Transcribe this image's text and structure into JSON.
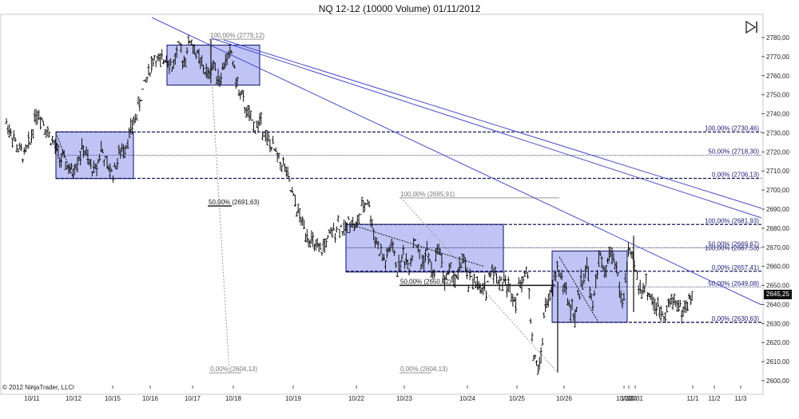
{
  "title": "NQ 12-12 (10000 Volume)  01/11/2012",
  "copyright": "© 2012 NinjaTrader, LLC",
  "last_price": "2645,25",
  "nav_icon": "play-to-end-icon",
  "colors": {
    "bars": "#111111",
    "box_fill": "#aab0f2",
    "box_border": "#0b0f6b",
    "trendline": "#4a4ec7",
    "fib_label": "#1a1a7a",
    "grid_label": "#222222",
    "retrace_line": "#999999"
  },
  "chart_data": {
    "type": "ohlc",
    "xlabel": "",
    "ylabel": "",
    "ylim": [
      2600,
      2785
    ],
    "y_ticks": [
      "2780,00",
      "2770,00",
      "2760,00",
      "2750,00",
      "2740,00",
      "2730,00",
      "2720,00",
      "2710,00",
      "2700,00",
      "2690,00",
      "2680,00",
      "2670,00",
      "2660,00",
      "2650,00",
      "2640,00",
      "2630,00",
      "2620,00",
      "2610,00",
      "2600,00"
    ],
    "x_ticks": [
      "10/11",
      "10/12",
      "10/15",
      "10/16",
      "10/17",
      "10/18",
      "10/19",
      "10/22",
      "10/23",
      "10/24",
      "10/25",
      "10/26",
      "10/29",
      "10/30",
      "10/31",
      "11/1",
      "11/2",
      "11/3"
    ],
    "close_path": [
      2735,
      2729,
      2721,
      2718,
      2725,
      2741,
      2738,
      2730,
      2724,
      2717,
      2714,
      2709,
      2716,
      2722,
      2713,
      2710,
      2722,
      2712,
      2709,
      2718,
      2723,
      2731,
      2740,
      2752,
      2762,
      2770,
      2766,
      2771,
      2764,
      2775,
      2768,
      2779,
      2772,
      2765,
      2760,
      2766,
      2758,
      2768,
      2772,
      2754,
      2746,
      2738,
      2733,
      2736,
      2726,
      2722,
      2716,
      2712,
      2700,
      2690,
      2682,
      2676,
      2670,
      2667,
      2673,
      2677,
      2683,
      2678,
      2685,
      2680,
      2690,
      2695,
      2678,
      2668,
      2662,
      2672,
      2658,
      2666,
      2660,
      2675,
      2661,
      2668,
      2655,
      2672,
      2652,
      2658,
      2652,
      2665,
      2651,
      2654,
      2646,
      2649,
      2660,
      2653,
      2652,
      2648,
      2643,
      2654,
      2656,
      2612,
      2606,
      2640,
      2645,
      2660,
      2651,
      2640,
      2633,
      2652,
      2660,
      2637,
      2666,
      2655,
      2668,
      2660,
      2638,
      2668,
      2660,
      2648,
      2650,
      2642,
      2637,
      2636,
      2641,
      2643,
      2636,
      2640,
      2645
    ],
    "price_boxes": [
      {
        "top": 2730.5,
        "bottom": 2706
      },
      {
        "top": 2776,
        "bottom": 2755
      },
      {
        "top": 2682,
        "bottom": 2657
      },
      {
        "top": 2668,
        "bottom": 2630.6
      }
    ],
    "fib_levels": [
      {
        "label": "100,00% (2730,46)",
        "value": 2730.46,
        "style": "dashed"
      },
      {
        "label": "50,00% (2718,30)",
        "value": 2718.3,
        "style": "dotted"
      },
      {
        "label": "0,00% (2706,13)",
        "value": 2706.13,
        "style": "dashed"
      },
      {
        "label": "100,00% (2681,93)",
        "value": 2681.93,
        "style": "dashed"
      },
      {
        "label": "50,00% (2669,67)",
        "value": 2669.67,
        "style": "dotted"
      },
      {
        "label": "0,00% (2657,41)",
        "value": 2657.41,
        "style": "dashed"
      },
      {
        "label": "50,00% (2649,08)",
        "value": 2649.08,
        "style": "dotted"
      },
      {
        "label": "0,00% (2630,63)",
        "value": 2630.63,
        "style": "dashed"
      }
    ],
    "overlay_label": "100,00% (2667,53)",
    "retracements": [
      {
        "top_label": "100,00% (2779,12)",
        "mid_label": "50,00% (2691,63)",
        "bottom_label": "0,00% (2604,13)",
        "top": 2779.12,
        "mid": 2691.63,
        "bottom": 2604.13
      },
      {
        "top_label": "100,00% (2695,91)",
        "mid_label": "50,00% (2650,02)",
        "bottom_label": "0,00% (2604,13)",
        "top": 2695.91,
        "mid": 2650.02,
        "bottom": 2604.13
      }
    ]
  }
}
